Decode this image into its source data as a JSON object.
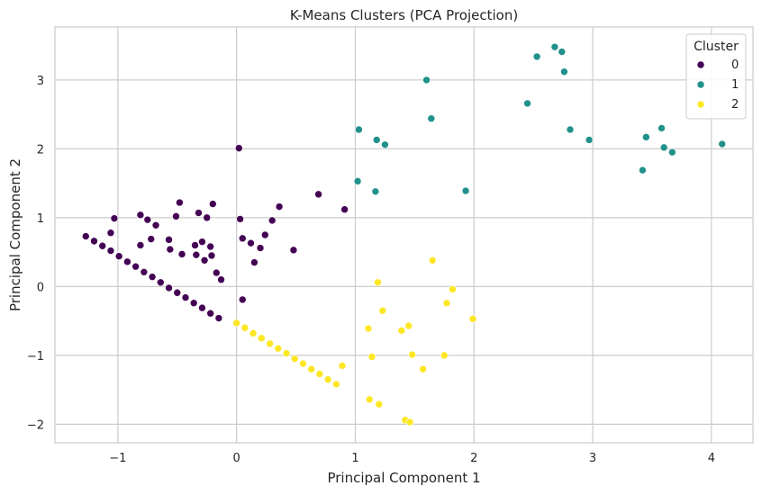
{
  "chart_data": {
    "type": "scatter",
    "title": "K-Means Clusters (PCA Projection)",
    "xlabel": "Principal Component 1",
    "ylabel": "Principal Component 2",
    "xlim": [
      -1.53,
      4.35
    ],
    "ylim": [
      -2.27,
      3.77
    ],
    "xticks": [
      -1,
      0,
      1,
      2,
      3,
      4
    ],
    "yticks": [
      -2,
      -1,
      0,
      1,
      2,
      3
    ],
    "grid": true,
    "legend": {
      "title": "Cluster",
      "placement": "top-right"
    },
    "series": [
      {
        "name": "0",
        "color": "#440154",
        "points": [
          [
            -1.27,
            0.73
          ],
          [
            -1.2,
            0.66
          ],
          [
            -1.13,
            0.59
          ],
          [
            -1.06,
            0.52
          ],
          [
            -0.99,
            0.44
          ],
          [
            -0.92,
            0.36
          ],
          [
            -0.85,
            0.29
          ],
          [
            -0.78,
            0.21
          ],
          [
            -0.71,
            0.14
          ],
          [
            -0.64,
            0.06
          ],
          [
            -0.57,
            -0.02
          ],
          [
            -0.5,
            -0.09
          ],
          [
            -0.43,
            -0.16
          ],
          [
            -0.36,
            -0.24
          ],
          [
            -0.29,
            -0.31
          ],
          [
            -0.22,
            -0.39
          ],
          [
            -0.15,
            -0.46
          ],
          [
            -1.03,
            0.99
          ],
          [
            -1.06,
            0.78
          ],
          [
            -0.81,
            1.04
          ],
          [
            -0.81,
            0.6
          ],
          [
            -0.75,
            0.97
          ],
          [
            -0.72,
            0.69
          ],
          [
            -0.68,
            0.89
          ],
          [
            -0.57,
            0.68
          ],
          [
            -0.56,
            0.54
          ],
          [
            -0.51,
            1.02
          ],
          [
            -0.48,
            1.22
          ],
          [
            -0.46,
            0.47
          ],
          [
            -0.35,
            0.6
          ],
          [
            -0.34,
            0.46
          ],
          [
            -0.32,
            1.07
          ],
          [
            -0.29,
            0.65
          ],
          [
            -0.27,
            0.38
          ],
          [
            -0.25,
            1.0
          ],
          [
            -0.22,
            0.58
          ],
          [
            -0.21,
            0.45
          ],
          [
            -0.2,
            1.2
          ],
          [
            -0.17,
            0.2
          ],
          [
            -0.13,
            0.1
          ],
          [
            0.02,
            2.01
          ],
          [
            0.03,
            0.98
          ],
          [
            0.05,
            0.7
          ],
          [
            0.05,
            -0.19
          ],
          [
            0.12,
            0.63
          ],
          [
            0.15,
            0.35
          ],
          [
            0.2,
            0.56
          ],
          [
            0.24,
            0.75
          ],
          [
            0.3,
            0.96
          ],
          [
            0.36,
            1.16
          ],
          [
            0.48,
            0.53
          ],
          [
            0.69,
            1.34
          ],
          [
            0.91,
            1.12
          ]
        ]
      },
      {
        "name": "1",
        "color": "#21918c",
        "points": [
          [
            1.02,
            1.53
          ],
          [
            1.03,
            2.28
          ],
          [
            1.17,
            1.38
          ],
          [
            1.18,
            2.13
          ],
          [
            1.25,
            2.06
          ],
          [
            1.6,
            3.0
          ],
          [
            1.64,
            2.44
          ],
          [
            1.93,
            1.39
          ],
          [
            2.45,
            2.66
          ],
          [
            2.53,
            3.34
          ],
          [
            2.68,
            3.48
          ],
          [
            2.74,
            3.41
          ],
          [
            2.76,
            3.12
          ],
          [
            2.81,
            2.28
          ],
          [
            2.97,
            2.13
          ],
          [
            3.42,
            1.69
          ],
          [
            3.45,
            2.17
          ],
          [
            3.58,
            2.3
          ],
          [
            3.6,
            2.02
          ],
          [
            3.67,
            1.95
          ],
          [
            4.09,
            2.07
          ]
        ]
      },
      {
        "name": "2",
        "color": "#fde725",
        "points": [
          [
            0.0,
            -0.53
          ],
          [
            0.07,
            -0.6
          ],
          [
            0.14,
            -0.68
          ],
          [
            0.21,
            -0.75
          ],
          [
            0.28,
            -0.83
          ],
          [
            0.35,
            -0.9
          ],
          [
            0.42,
            -0.97
          ],
          [
            0.49,
            -1.05
          ],
          [
            0.56,
            -1.12
          ],
          [
            0.63,
            -1.2
          ],
          [
            0.7,
            -1.27
          ],
          [
            0.77,
            -1.35
          ],
          [
            0.84,
            -1.42
          ],
          [
            0.89,
            -1.15
          ],
          [
            1.11,
            -0.61
          ],
          [
            1.12,
            -1.64
          ],
          [
            1.14,
            -1.02
          ],
          [
            1.19,
            0.06
          ],
          [
            1.2,
            -1.71
          ],
          [
            1.23,
            -0.35
          ],
          [
            1.39,
            -0.64
          ],
          [
            1.42,
            -1.94
          ],
          [
            1.45,
            -0.57
          ],
          [
            1.46,
            -1.97
          ],
          [
            1.48,
            -0.99
          ],
          [
            1.57,
            -1.2
          ],
          [
            1.65,
            0.38
          ],
          [
            1.75,
            -1.0
          ],
          [
            1.77,
            -0.24
          ],
          [
            1.82,
            -0.04
          ],
          [
            1.99,
            -0.47
          ]
        ]
      }
    ]
  }
}
